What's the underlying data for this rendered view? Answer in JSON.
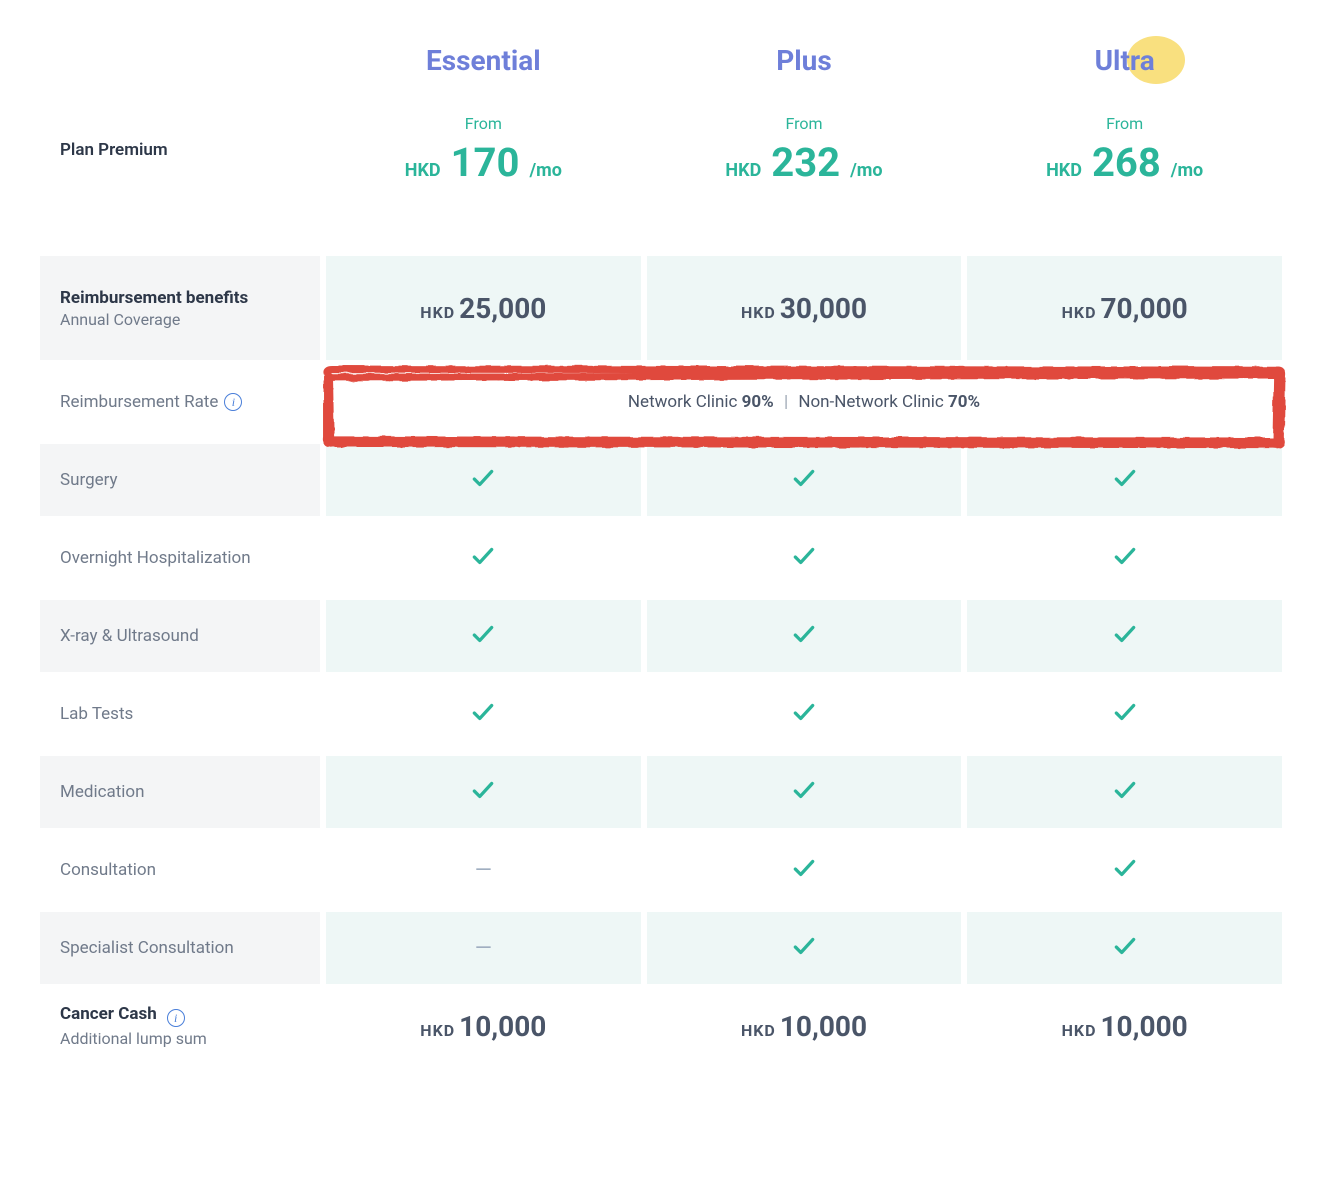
{
  "colors": {
    "plan_name": "#6e7fd9",
    "accent_green": "#2bb59a",
    "text_dark": "#2d3748",
    "text_muted": "#707a8a",
    "row_label_bg": "#f4f5f6",
    "row_value_bg": "#eef7f6",
    "highlight_bubble": "#f9e07f",
    "scribble_red": "#e0483c",
    "info_blue": "#4a7fd9",
    "dash_gray": "#a0aec0"
  },
  "currency": "HKD",
  "plans": [
    {
      "name": "Essential",
      "from_label": "From",
      "price": "170",
      "unit": "/mo"
    },
    {
      "name": "Plus",
      "from_label": "From",
      "price": "232",
      "unit": "/mo"
    },
    {
      "name": "Ultra",
      "from_label": "From",
      "price": "268",
      "unit": "/mo"
    }
  ],
  "premium_label": "Plan Premium",
  "sections": {
    "reimbursement": {
      "title": "Reimbursement benefits",
      "subtitle": "Annual Coverage",
      "values": [
        "25,000",
        "30,000",
        "70,000"
      ]
    },
    "rate": {
      "label": "Reimbursement Rate",
      "network_label": "Network Clinic",
      "network_pct": "90%",
      "nonnetwork_label": "Non-Network Clinic",
      "nonnetwork_pct": "70%"
    },
    "features": [
      {
        "label": "Surgery",
        "vals": [
          "check",
          "check",
          "check"
        ]
      },
      {
        "label": "Overnight Hospitalization",
        "vals": [
          "check",
          "check",
          "check"
        ]
      },
      {
        "label": "X-ray & Ultrasound",
        "vals": [
          "check",
          "check",
          "check"
        ]
      },
      {
        "label": "Lab Tests",
        "vals": [
          "check",
          "check",
          "check"
        ]
      },
      {
        "label": "Medication",
        "vals": [
          "check",
          "check",
          "check"
        ]
      },
      {
        "label": "Consultation",
        "vals": [
          "dash",
          "check",
          "check"
        ]
      },
      {
        "label": "Specialist Consultation",
        "vals": [
          "dash",
          "check",
          "check"
        ]
      }
    ],
    "cancer": {
      "title": "Cancer Cash",
      "subtitle": "Additional lump sum",
      "values": [
        "10,000",
        "10,000",
        "10,000"
      ]
    }
  }
}
